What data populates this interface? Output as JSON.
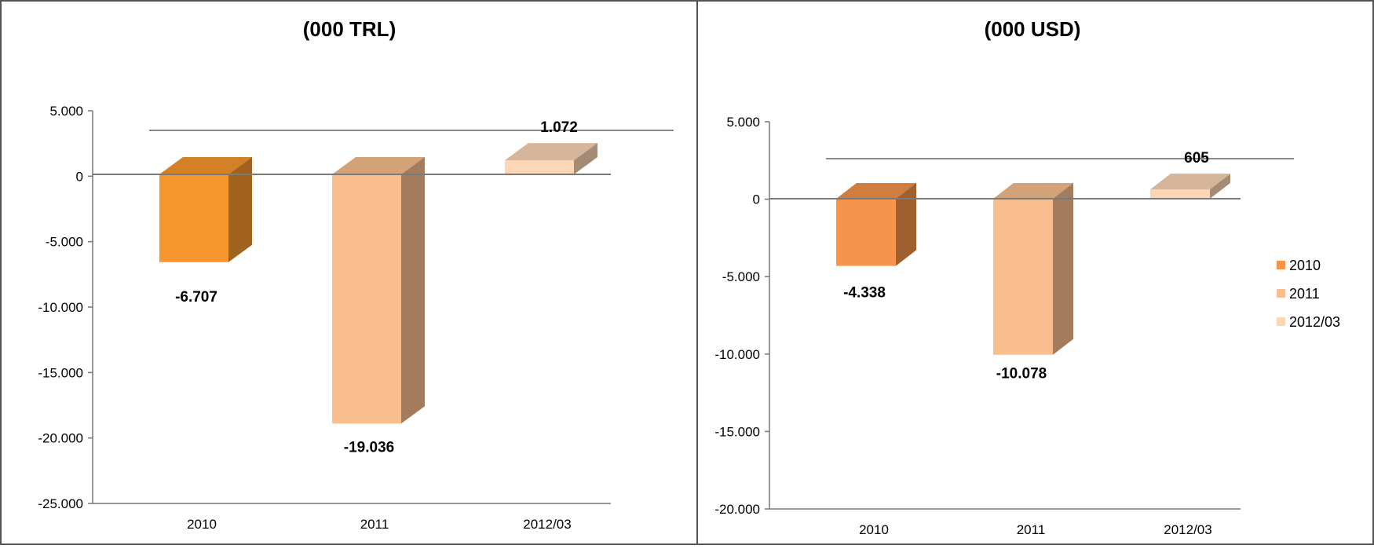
{
  "chart_data": [
    {
      "type": "bar",
      "title": "(000 TRL)",
      "categories": [
        "2010",
        "2011",
        "2012/03"
      ],
      "values": [
        -6707,
        -19036,
        1072
      ],
      "value_labels": [
        "-6.707",
        "-19.036",
        "1.072"
      ],
      "ylim": [
        -25000,
        5000
      ],
      "yticks": [
        5000,
        0,
        -5000,
        -10000,
        -15000,
        -20000,
        -25000
      ],
      "ytick_labels": [
        "5.000",
        "0",
        "-5.000",
        "-10.000",
        "-15.000",
        "-20.000",
        "-25.000"
      ],
      "colors": [
        "#F8962E",
        "#F9BE8E",
        "#FCD6B5"
      ],
      "grid": false,
      "legend": false
    },
    {
      "type": "bar",
      "title": "(000 USD)",
      "categories": [
        "2010",
        "2011",
        "2012/03"
      ],
      "values": [
        -4338,
        -10078,
        605
      ],
      "value_labels": [
        "-4.338",
        "-10.078",
        "605"
      ],
      "ylim": [
        -20000,
        5000
      ],
      "yticks": [
        5000,
        0,
        -5000,
        -10000,
        -15000,
        -20000
      ],
      "ytick_labels": [
        "5.000",
        "0",
        "-5.000",
        "-10.000",
        "-15.000",
        "-20.000"
      ],
      "colors": [
        "#F5944A",
        "#F9BE8E",
        "#FCD6B5"
      ],
      "grid": false,
      "legend": true,
      "legend_position": "right",
      "legend_entries": [
        "2010",
        "2011",
        "2012/03"
      ]
    }
  ]
}
